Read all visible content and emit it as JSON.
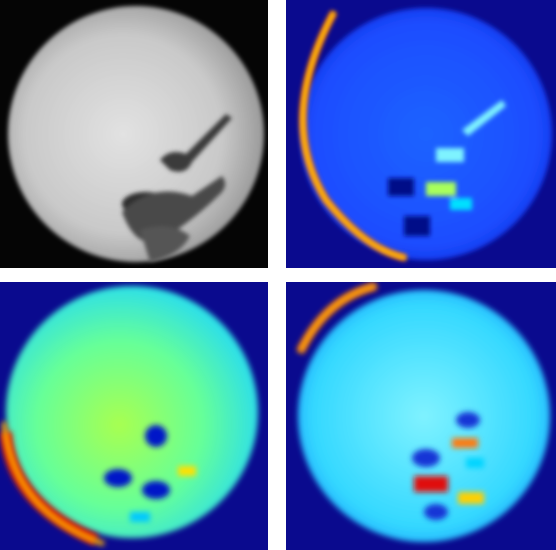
{
  "figure": {
    "panels": [
      {
        "id": "grayscale",
        "colormap": "gray"
      },
      {
        "id": "jet-map-a",
        "colormap": "jet"
      },
      {
        "id": "jet-map-b",
        "colormap": "jet"
      },
      {
        "id": "jet-map-c",
        "colormap": "jet"
      }
    ]
  }
}
